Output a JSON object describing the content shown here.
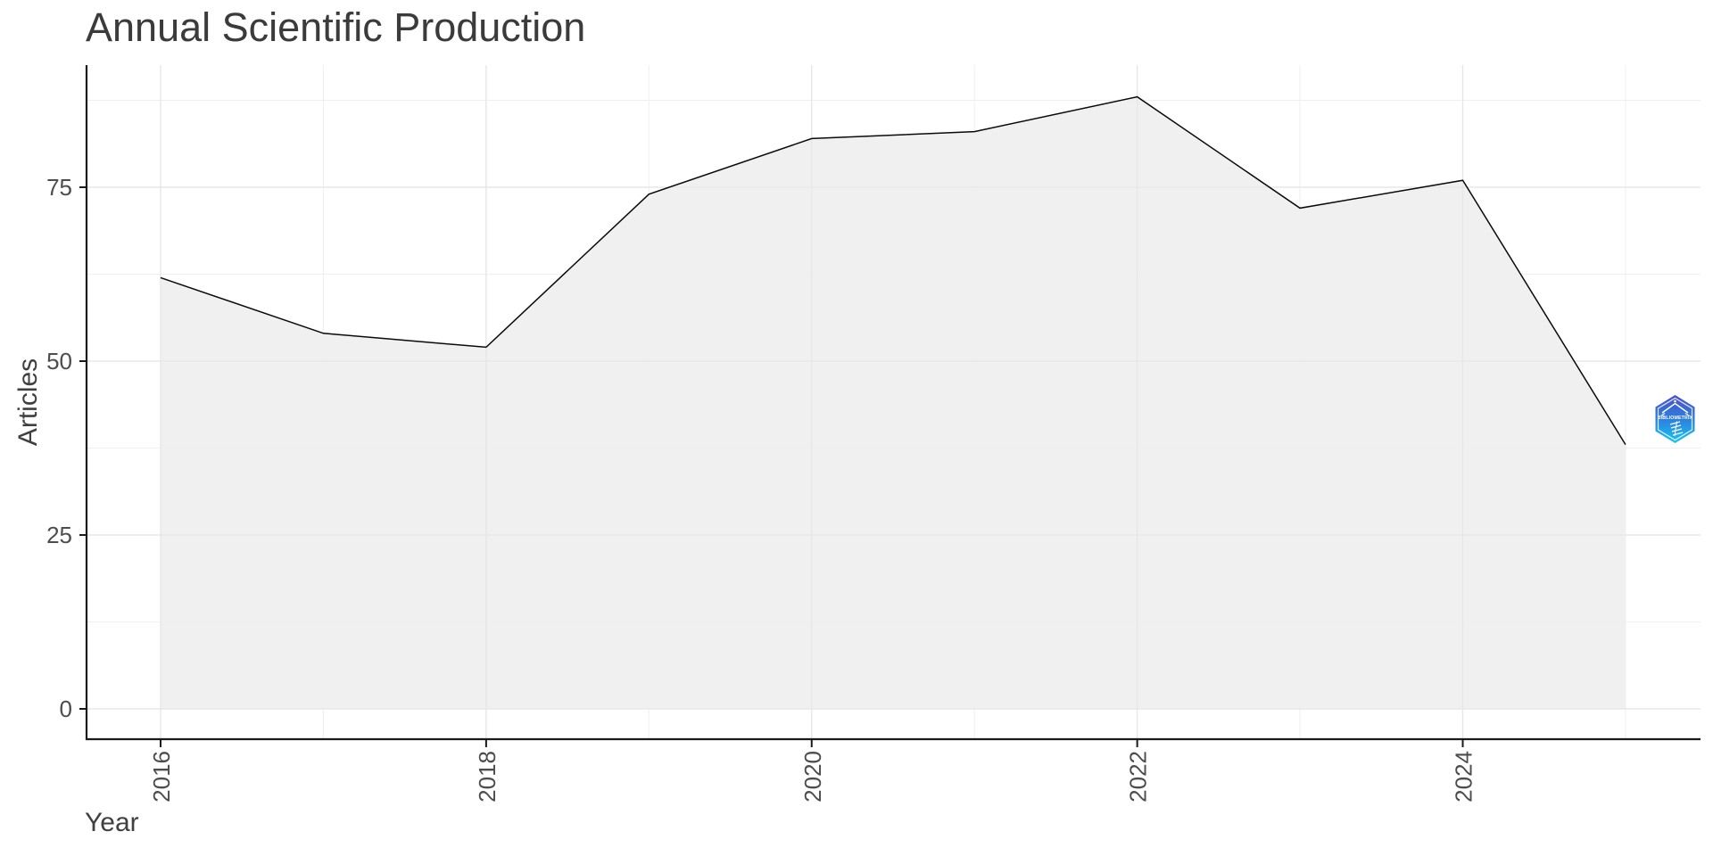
{
  "title": "Annual Scientific Production",
  "chart_data": {
    "type": "area",
    "title": "Annual Scientific Production",
    "xlabel": "Year",
    "ylabel": "Articles",
    "x": [
      2016,
      2017,
      2018,
      2019,
      2020,
      2021,
      2022,
      2023,
      2024,
      2025
    ],
    "series": [
      {
        "name": "Articles",
        "values": [
          62,
          54,
          52,
          74,
          82,
          83,
          88,
          72,
          76,
          38
        ]
      }
    ],
    "xticks": [
      2016,
      2018,
      2020,
      2022,
      2024
    ],
    "yticks": [
      0,
      25,
      50,
      75
    ],
    "x_minor": [
      2017,
      2019,
      2021,
      2023,
      2025
    ],
    "y_minor": [
      12.5,
      37.5,
      62.5,
      87.5
    ],
    "xlim": [
      2015.55,
      2025.45
    ],
    "ylim": [
      -4.4,
      92.4
    ],
    "grid": "major+minor",
    "legend": "none",
    "colors": {
      "area_fill": "#F0F0F0",
      "line": "#0A0A0A",
      "grid_major": "#E7E7E7",
      "grid_minor": "#EFEFEF",
      "axis": "#1A1A1A",
      "tick_text": "#4D4D4D",
      "title_text": "#3B3B3B"
    }
  },
  "logo": {
    "text": "BIBLIOMETRIX",
    "color_top": "#4A4FC8",
    "color_mid": "#2E7FDE",
    "color_bottom": "#19C6F2"
  }
}
